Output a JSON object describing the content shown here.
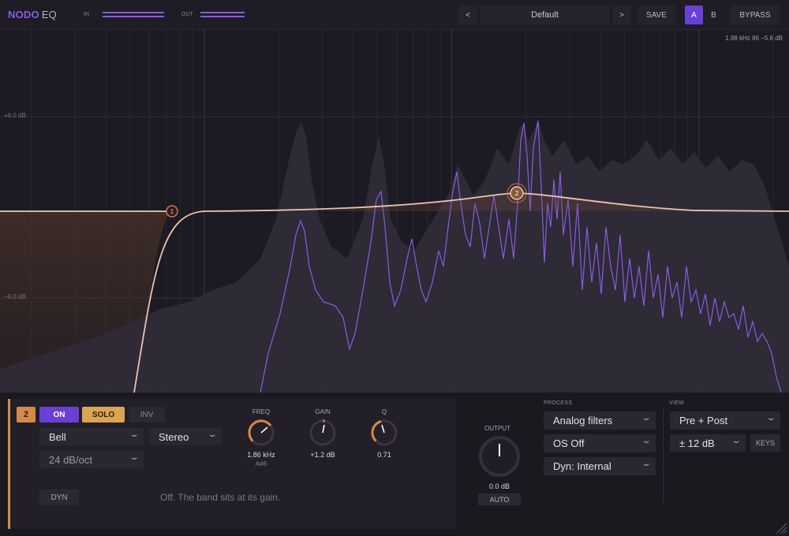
{
  "brand": {
    "name_a": "NODO",
    "name_b": "EQ"
  },
  "meters": {
    "in_label": "IN",
    "out_label": "OUT",
    "in_level": 0.98,
    "out_level": 0.82
  },
  "toolbar": {
    "prev": "<",
    "preset": "Default",
    "next": ">",
    "save": "SAVE",
    "a": "A",
    "b": "B",
    "bypass": "BYPASS",
    "active_slot": "A"
  },
  "display": {
    "readout": "1.98 kHz   86   −5.6 dB",
    "db_labels": [
      "+6.0 dB",
      "−6.0 dB"
    ],
    "nodes": [
      {
        "id": "1",
        "label": "1"
      },
      {
        "id": "2",
        "label": "2"
      }
    ]
  },
  "band": {
    "number": "2",
    "on_label": "ON",
    "solo_label": "SOLO",
    "inv_label": "INV",
    "shape": "Bell",
    "channel": "Stereo",
    "slope": "24 dB/oct",
    "freq_label": "FREQ",
    "freq_value": "1.86 kHz",
    "freq_note": "A#6",
    "gain_label": "GAIN",
    "gain_value": "+1.2 dB",
    "q_label": "Q",
    "q_value": "0.71",
    "dyn_label": "DYN",
    "dyn_hint": "Off. The band sits at its gain."
  },
  "output": {
    "label": "OUTPUT",
    "value": "0.0 dB",
    "auto": "AUTO"
  },
  "process": {
    "label": "PROCESS",
    "filters": "Analog filters",
    "oversampling": "OS Off",
    "dyn": "Dyn: Internal"
  },
  "view": {
    "label": "VIEW",
    "mode": "Pre + Post",
    "range": "± 12 dB",
    "keys": "KEYS"
  },
  "colors": {
    "accent": "#6a3fd6",
    "band_orange": "#d58a46",
    "solo": "#d9a552",
    "curve": "#f0c8b0",
    "spectrum_line": "#8a5ce0"
  }
}
